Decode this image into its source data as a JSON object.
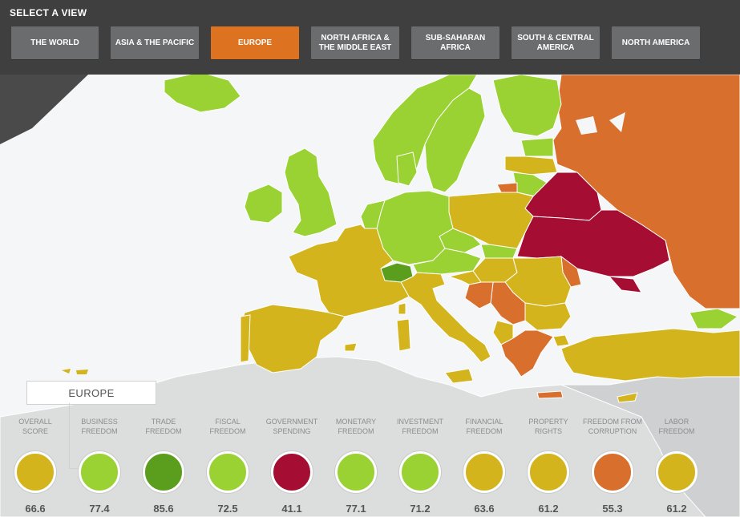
{
  "header": {
    "title": "SELECT A VIEW",
    "buttons": [
      {
        "label": "THE WORLD",
        "active": false
      },
      {
        "label": "ASIA & THE PACIFIC",
        "active": false
      },
      {
        "label": "EUROPE",
        "active": true
      },
      {
        "label": "NORTH AFRICA &\nTHE MIDDLE EAST",
        "active": false
      },
      {
        "label": "SUB-SAHARAN\nAFRICA",
        "active": false
      },
      {
        "label": "SOUTH & CENTRAL\nAMERICA",
        "active": false
      },
      {
        "label": "NORTH AMERICA",
        "active": false
      }
    ]
  },
  "region_label": "EUROPE",
  "indicators": [
    {
      "label": "OVERALL\nSCORE",
      "value": "66.6",
      "color": "#d4b41c"
    },
    {
      "label": "BUSINESS\nFREEDOM",
      "value": "77.4",
      "color": "#9ad133"
    },
    {
      "label": "TRADE\nFREEDOM",
      "value": "85.6",
      "color": "#5b9e1e"
    },
    {
      "label": "FISCAL\nFREEDOM",
      "value": "72.5",
      "color": "#9ad133"
    },
    {
      "label": "GOVERNMENT\nSPENDING",
      "value": "41.1",
      "color": "#a50d33"
    },
    {
      "label": "MONETARY\nFREEDOM",
      "value": "77.1",
      "color": "#9ad133"
    },
    {
      "label": "INVESTMENT\nFREEDOM",
      "value": "71.2",
      "color": "#9ad133"
    },
    {
      "label": "FINANCIAL\nFREEDOM",
      "value": "63.6",
      "color": "#d4b41c"
    },
    {
      "label": "PROPERTY\nRIGHTS",
      "value": "61.2",
      "color": "#d4b41c"
    },
    {
      "label": "FREEDOM FROM\nCORRUPTION",
      "value": "55.3",
      "color": "#d96f2c"
    },
    {
      "label": "LABOR\nFREEDOM",
      "value": "61.2",
      "color": "#d4b41c"
    }
  ],
  "colors": {
    "free": "#5b9e1e",
    "mostly_free": "#9ad133",
    "moderately_free": "#d4b41c",
    "mostly_unfree": "#d96f2c",
    "repressed": "#a50d33",
    "sea": "#f4f6f7",
    "other_land": "#d9dadb"
  }
}
